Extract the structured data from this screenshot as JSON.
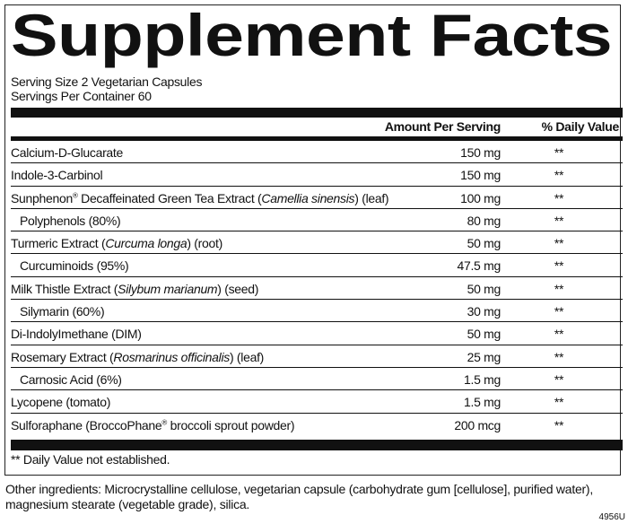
{
  "title": "Supplement Facts",
  "serving_size": "Serving Size 2 Vegetarian Capsules",
  "servings_per_container": "Servings Per Container 60",
  "header": {
    "amount": "Amount Per Serving",
    "dv": "% Daily Value"
  },
  "rows": [
    {
      "parts": [
        "Calcium-D-Glucarate"
      ],
      "amount": "150 mg",
      "dv": "**",
      "sub": false
    },
    {
      "parts": [
        "Indole-3-Carbinol"
      ],
      "amount": "150 mg",
      "dv": "**",
      "sub": false
    },
    {
      "parts": [
        "Sunphenon",
        "®",
        " Decaffeinated Green Tea Extract (",
        "Camellia sinensis",
        ") (leaf)"
      ],
      "amount": "100 mg",
      "dv": "**",
      "sub": false,
      "fmt": "nsnin"
    },
    {
      "parts": [
        "Polyphenols (80%)"
      ],
      "amount": "80 mg",
      "dv": "**",
      "sub": true
    },
    {
      "parts": [
        "Turmeric Extract (",
        "Curcuma longa",
        ") (root)"
      ],
      "amount": "50 mg",
      "dv": "**",
      "sub": false,
      "fmt": "nin"
    },
    {
      "parts": [
        "Curcuminoids (95%)"
      ],
      "amount": "47.5 mg",
      "dv": "**",
      "sub": true
    },
    {
      "parts": [
        "Milk Thistle Extract (",
        "Silybum marianum",
        ") (seed)"
      ],
      "amount": "50 mg",
      "dv": "**",
      "sub": false,
      "fmt": "nin"
    },
    {
      "parts": [
        "Silymarin (60%)"
      ],
      "amount": "30 mg",
      "dv": "**",
      "sub": true
    },
    {
      "parts": [
        "Di-IndolyImethane (DIM)"
      ],
      "amount": "50 mg",
      "dv": "**",
      "sub": false
    },
    {
      "parts": [
        "Rosemary Extract (",
        "Rosmarinus officinalis",
        ") (leaf)"
      ],
      "amount": "25 mg",
      "dv": "**",
      "sub": false,
      "fmt": "nin"
    },
    {
      "parts": [
        "Carnosic Acid (6%)"
      ],
      "amount": "1.5 mg",
      "dv": "**",
      "sub": true
    },
    {
      "parts": [
        "Lycopene (tomato)"
      ],
      "amount": "1.5 mg",
      "dv": "**",
      "sub": false
    },
    {
      "parts": [
        "Sulforaphane (BroccoPhane",
        "®",
        " broccoli sprout powder)"
      ],
      "amount": "200 mcg",
      "dv": "**",
      "sub": false,
      "fmt": "nsn"
    }
  ],
  "footnote": "** Daily Value not established.",
  "other_ingredients": "Other ingredients: Microcrystalline cellulose, vegetarian capsule (carbohydrate gum [cellulose], purified water), magnesium stearate (vegetable grade), silica.",
  "code": "4956U"
}
